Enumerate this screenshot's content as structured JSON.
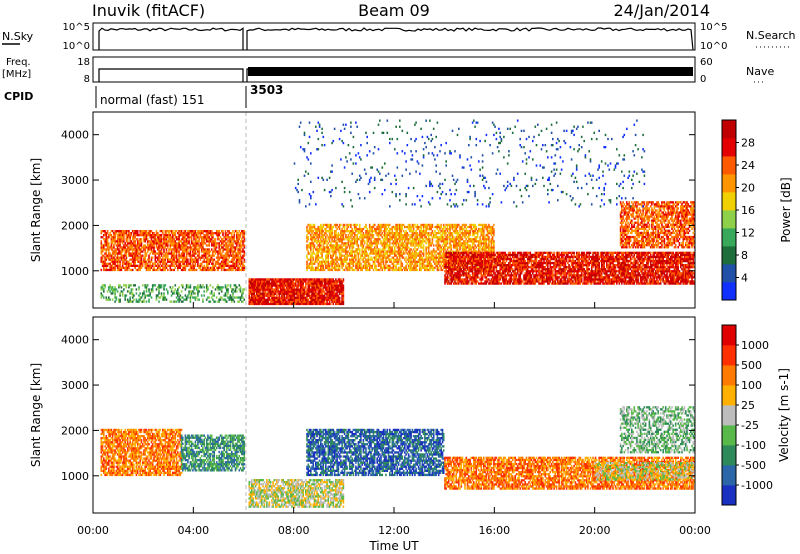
{
  "header": {
    "station": "Inuvik (fitACF)",
    "beam": "Beam 09",
    "date": "24/Jan/2014"
  },
  "top_panels": {
    "nsky_label": "N.Sky",
    "nsky_ticks": [
      "10^5",
      "10^0"
    ],
    "nsearch_label": "N.Search",
    "nsearch_ticks": [
      "10^5",
      "10^0"
    ],
    "freq_label": "Freq.",
    "freq_unit": "[MHz]",
    "freq_ticks": [
      "18",
      "8"
    ],
    "nave_label": "Nave",
    "nave_ticks": [
      "60",
      "0"
    ],
    "cpid_label": "CPID",
    "cpid_segments": [
      {
        "label": "normal (fast) 151",
        "start_hour": 0,
        "end_hour": 6.1
      },
      {
        "label": "3503",
        "start_hour": 6.1,
        "end_hour": 24
      }
    ]
  },
  "chart_data": [
    {
      "type": "heatmap",
      "name": "power-panel",
      "ylabel": "Slant Range [km]",
      "yticks": [
        1000,
        2000,
        3000,
        4000
      ],
      "ylim": [
        180,
        4500
      ],
      "xlim": [
        0,
        24
      ],
      "colorbar": {
        "label": "Power [dB]",
        "ticks": [
          "28",
          "24",
          "20",
          "16",
          "12",
          "8",
          "4"
        ]
      },
      "colors": [
        "#1030ff",
        "#2050a8",
        "#1e6e3c",
        "#38a85a",
        "#8ed04a",
        "#f0d000",
        "#ff9600",
        "#ff5a00",
        "#e40000",
        "#c00000"
      ],
      "features": [
        {
          "t0": 0.3,
          "t1": 6.0,
          "r0": 1000,
          "r1": 1900,
          "density": 0.75,
          "level": 7
        },
        {
          "t0": 0.3,
          "t1": 6.0,
          "r0": 300,
          "r1": 700,
          "density": 0.4,
          "level": 3
        },
        {
          "t0": 6.2,
          "t1": 10.0,
          "r0": 250,
          "r1": 800,
          "density": 0.95,
          "level": 8
        },
        {
          "t0": 8.5,
          "t1": 16.0,
          "r0": 1000,
          "r1": 2000,
          "density": 0.7,
          "level": 6
        },
        {
          "t0": 14.0,
          "t1": 24.0,
          "r0": 700,
          "r1": 1400,
          "density": 0.85,
          "level": 8
        },
        {
          "t0": 21.0,
          "t1": 24.0,
          "r0": 1500,
          "r1": 2500,
          "density": 0.7,
          "level": 7
        },
        {
          "t0": 8.0,
          "t1": 22.0,
          "r0": 2400,
          "r1": 4300,
          "density": 0.05,
          "level": 1
        }
      ]
    },
    {
      "type": "heatmap",
      "name": "velocity-panel",
      "xlabel": "Time UT",
      "ylabel": "Slant Range [km]",
      "yticks": [
        1000,
        2000,
        3000,
        4000
      ],
      "xticks": [
        "00:00",
        "04:00",
        "08:00",
        "12:00",
        "16:00",
        "20:00",
        "00:00"
      ],
      "ylim": [
        180,
        4500
      ],
      "xlim": [
        0,
        24
      ],
      "colorbar": {
        "label": "Velocity [m s-1]",
        "ticks": [
          "1000",
          "500",
          "100",
          "25",
          "-25",
          "-100",
          "-500",
          "-1000"
        ]
      },
      "colors": [
        "#1a30c0",
        "#2a66a8",
        "#2e8a5a",
        "#58b84a",
        "#bdbdbd",
        "#ffb000",
        "#ff7a00",
        "#ff3000",
        "#e00000"
      ],
      "features": [
        {
          "t0": 0.3,
          "t1": 3.5,
          "r0": 1000,
          "r1": 2000,
          "density": 0.75,
          "level": 6
        },
        {
          "t0": 3.5,
          "t1": 6.0,
          "r0": 1100,
          "r1": 1900,
          "density": 0.7,
          "level": 2
        },
        {
          "t0": 6.2,
          "t1": 10.0,
          "r0": 300,
          "r1": 900,
          "density": 0.7,
          "level": 4
        },
        {
          "t0": 8.5,
          "t1": 14.0,
          "r0": 1000,
          "r1": 2000,
          "density": 0.7,
          "level": 1
        },
        {
          "t0": 14.0,
          "t1": 24.0,
          "r0": 700,
          "r1": 1400,
          "density": 0.75,
          "level": 6
        },
        {
          "t0": 20.0,
          "t1": 24.0,
          "r0": 900,
          "r1": 1300,
          "density": 0.55,
          "level": 4
        },
        {
          "t0": 21.0,
          "t1": 24.0,
          "r0": 1500,
          "r1": 2500,
          "density": 0.55,
          "level": 3
        }
      ]
    }
  ]
}
